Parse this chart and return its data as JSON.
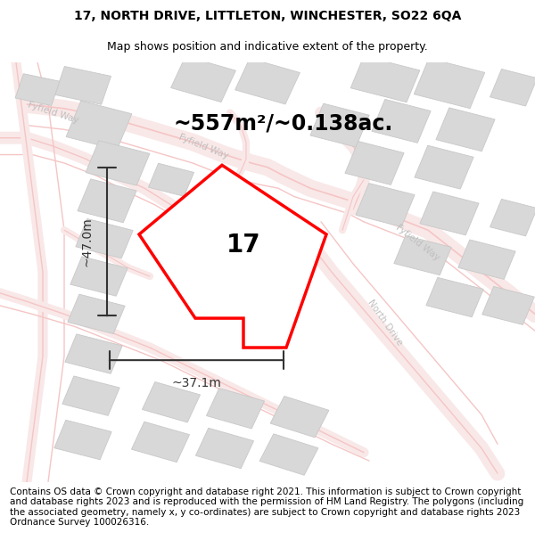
{
  "title_line1": "17, NORTH DRIVE, LITTLETON, WINCHESTER, SO22 6QA",
  "title_line2": "Map shows position and indicative extent of the property.",
  "area_text": "~557m²/~0.138ac.",
  "label_17": "17",
  "dim_width": "~37.1m",
  "dim_height": "~47.0m",
  "road_label_fyfield_way_ul": "Fyfield Way",
  "road_label_fyfield_way_um": "Fyfield Way",
  "road_label_fyfield_way_r": "Fyfield Way",
  "road_label_north_drive": "North Drive",
  "footer_text": "Contains OS data © Crown copyright and database right 2021. This information is subject to Crown copyright and database rights 2023 and is reproduced with the permission of HM Land Registry. The polygons (including the associated geometry, namely x, y co-ordinates) are subject to Crown copyright and database rights 2023 Ordnance Survey 100026316.",
  "bg_color": "#ffffff",
  "map_bg": "#f8f8f8",
  "road_color": "#f5c5c5",
  "road_lw": 1.0,
  "building_fill": "#d8d8d8",
  "building_edge": "#c8c8c8",
  "plot_edge": "#ff0000",
  "plot_fill": "#ffffff",
  "dim_color": "#333333",
  "text_color": "#000000",
  "road_text_color": "#c0c0c0",
  "title_fontsize": 10,
  "subtitle_fontsize": 9,
  "area_fontsize": 17,
  "label_fontsize": 20,
  "dim_fontsize": 10,
  "road_fontsize": 7.5,
  "footer_fontsize": 7.5
}
